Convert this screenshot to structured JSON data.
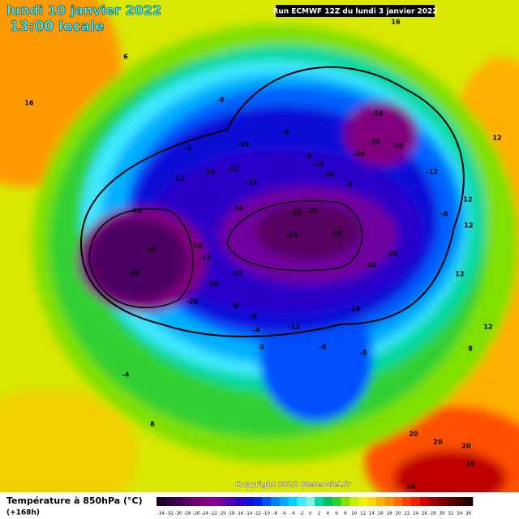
{
  "header": {
    "title": "lundi 10 janvier 2022",
    "subtitle": "13:00 locale",
    "run": "Run ECMWF 12Z du lundi 3 janvier 2022"
  },
  "map": {
    "contour_labels": [
      -8,
      -20,
      -16,
      -12,
      -12,
      -8,
      -16,
      -16,
      -8,
      -16,
      -20,
      -20,
      -20,
      -12,
      -8,
      12,
      -16,
      -28,
      -20,
      -24,
      -28,
      -20,
      -20,
      -20,
      -24,
      -28,
      -16,
      -12,
      -16,
      -12,
      -20,
      -8,
      -8,
      -12,
      -4,
      0,
      -8,
      -16,
      -8,
      -4,
      -8,
      -4,
      -12,
      6,
      16,
      8,
      12,
      12,
      8,
      20,
      20,
      20,
      16,
      24,
      16,
      12,
      12
    ]
  },
  "footer": {
    "variable": "Température à 850hPa (°C)",
    "lead": "(+168h)",
    "copyright": "Copyright 2022 Meteociel.fr"
  },
  "colorbar": {
    "ticks": [
      -34,
      -32,
      -30,
      -28,
      -26,
      -24,
      -22,
      -20,
      -18,
      -16,
      -14,
      -12,
      -10,
      -8,
      -6,
      -4,
      -2,
      0,
      2,
      4,
      6,
      8,
      10,
      12,
      14,
      16,
      18,
      20,
      22,
      24,
      26,
      28,
      30,
      32,
      34,
      36
    ],
    "colors": [
      "#1a0020",
      "#2e0040",
      "#400050",
      "#560060",
      "#6c0070",
      "#800080",
      "#900090",
      "#6a00a0",
      "#4b00b4",
      "#2c00c8",
      "#1010d8",
      "#0020f0",
      "#0050ff",
      "#0080ff",
      "#00a8ff",
      "#00d0ff",
      "#40e8ff",
      "#80f0e0",
      "#00d8a0",
      "#00c060",
      "#30d030",
      "#80e000",
      "#c0f000",
      "#f0f000",
      "#ffd800",
      "#ffb000",
      "#ff9000",
      "#ff6800",
      "#ff4000",
      "#f02000",
      "#d00000",
      "#a00000",
      "#800000",
      "#600000",
      "#400000",
      "#200000"
    ]
  }
}
